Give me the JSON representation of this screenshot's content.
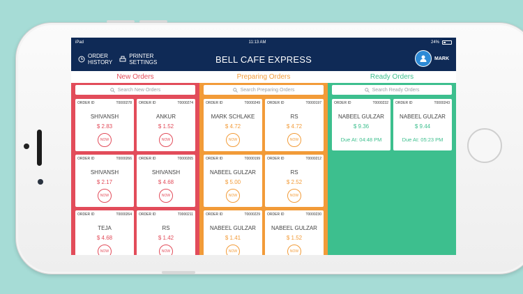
{
  "statusbar": {
    "device": "iPad",
    "time": "11:13 AM",
    "battery": "24%"
  },
  "navbar": {
    "order_history": "ORDER\nHISTORY",
    "printer_settings": "PRINTER\nSETTINGS",
    "title": "BELL CAFE EXPRESS",
    "user": "MARK"
  },
  "columns": {
    "new": {
      "title": "New Orders",
      "search_placeholder": "Search New Orders",
      "orders": [
        {
          "label": "ORDER ID",
          "id": "T0000278",
          "name": "SHIVANSH",
          "price": "$ 2.83",
          "action": "NOW"
        },
        {
          "label": "ORDER ID",
          "id": "T0000274",
          "name": "ANKUR",
          "price": "$ 1.52",
          "action": "NOW"
        },
        {
          "label": "ORDER ID",
          "id": "T0000266",
          "name": "SHIVANSH",
          "price": "$ 2.17",
          "action": "NOW"
        },
        {
          "label": "ORDER ID",
          "id": "T0000265",
          "name": "SHIVANSH",
          "price": "$ 4.68",
          "action": "NOW"
        },
        {
          "label": "ORDER ID",
          "id": "T0000264",
          "name": "TEJA",
          "price": "$ 4.68",
          "action": "NOW"
        },
        {
          "label": "ORDER ID",
          "id": "T0000211",
          "name": "RS",
          "price": "$ 1.42",
          "action": "NOW"
        }
      ]
    },
    "preparing": {
      "title": "Preparing Orders",
      "search_placeholder": "Search Preparing Orders",
      "orders": [
        {
          "label": "ORDER ID",
          "id": "T0000249",
          "name": "MARK SCHLAKE",
          "price": "$ 4.72",
          "action": "NOW"
        },
        {
          "label": "ORDER ID",
          "id": "T0000197",
          "name": "RS",
          "price": "$ 4.72",
          "action": "NOW"
        },
        {
          "label": "ORDER ID",
          "id": "T0000199",
          "name": "NABEEL GULZAR",
          "price": "$ 5.00",
          "action": "NOW"
        },
        {
          "label": "ORDER ID",
          "id": "T0000212",
          "name": "RS",
          "price": "$ 2.52",
          "action": "NOW"
        },
        {
          "label": "ORDER ID",
          "id": "T0000229",
          "name": "NABEEL GULZAR",
          "price": "$ 1.41",
          "action": "NOW"
        },
        {
          "label": "ORDER ID",
          "id": "T0000230",
          "name": "NABEEL GULZAR",
          "price": "$ 1.52",
          "action": "NOW"
        }
      ]
    },
    "ready": {
      "title": "Ready Orders",
      "search_placeholder": "Search Ready Orders",
      "orders": [
        {
          "label": "ORDER ID",
          "id": "T0000232",
          "name": "NABEEL GULZAR",
          "price": "$ 9.36",
          "due": "Due At: 04:48 PM"
        },
        {
          "label": "ORDER ID",
          "id": "T0000243",
          "name": "NABEEL GULZAR",
          "price": "$ 9.44",
          "due": "Due At: 05:23 PM"
        }
      ]
    }
  }
}
